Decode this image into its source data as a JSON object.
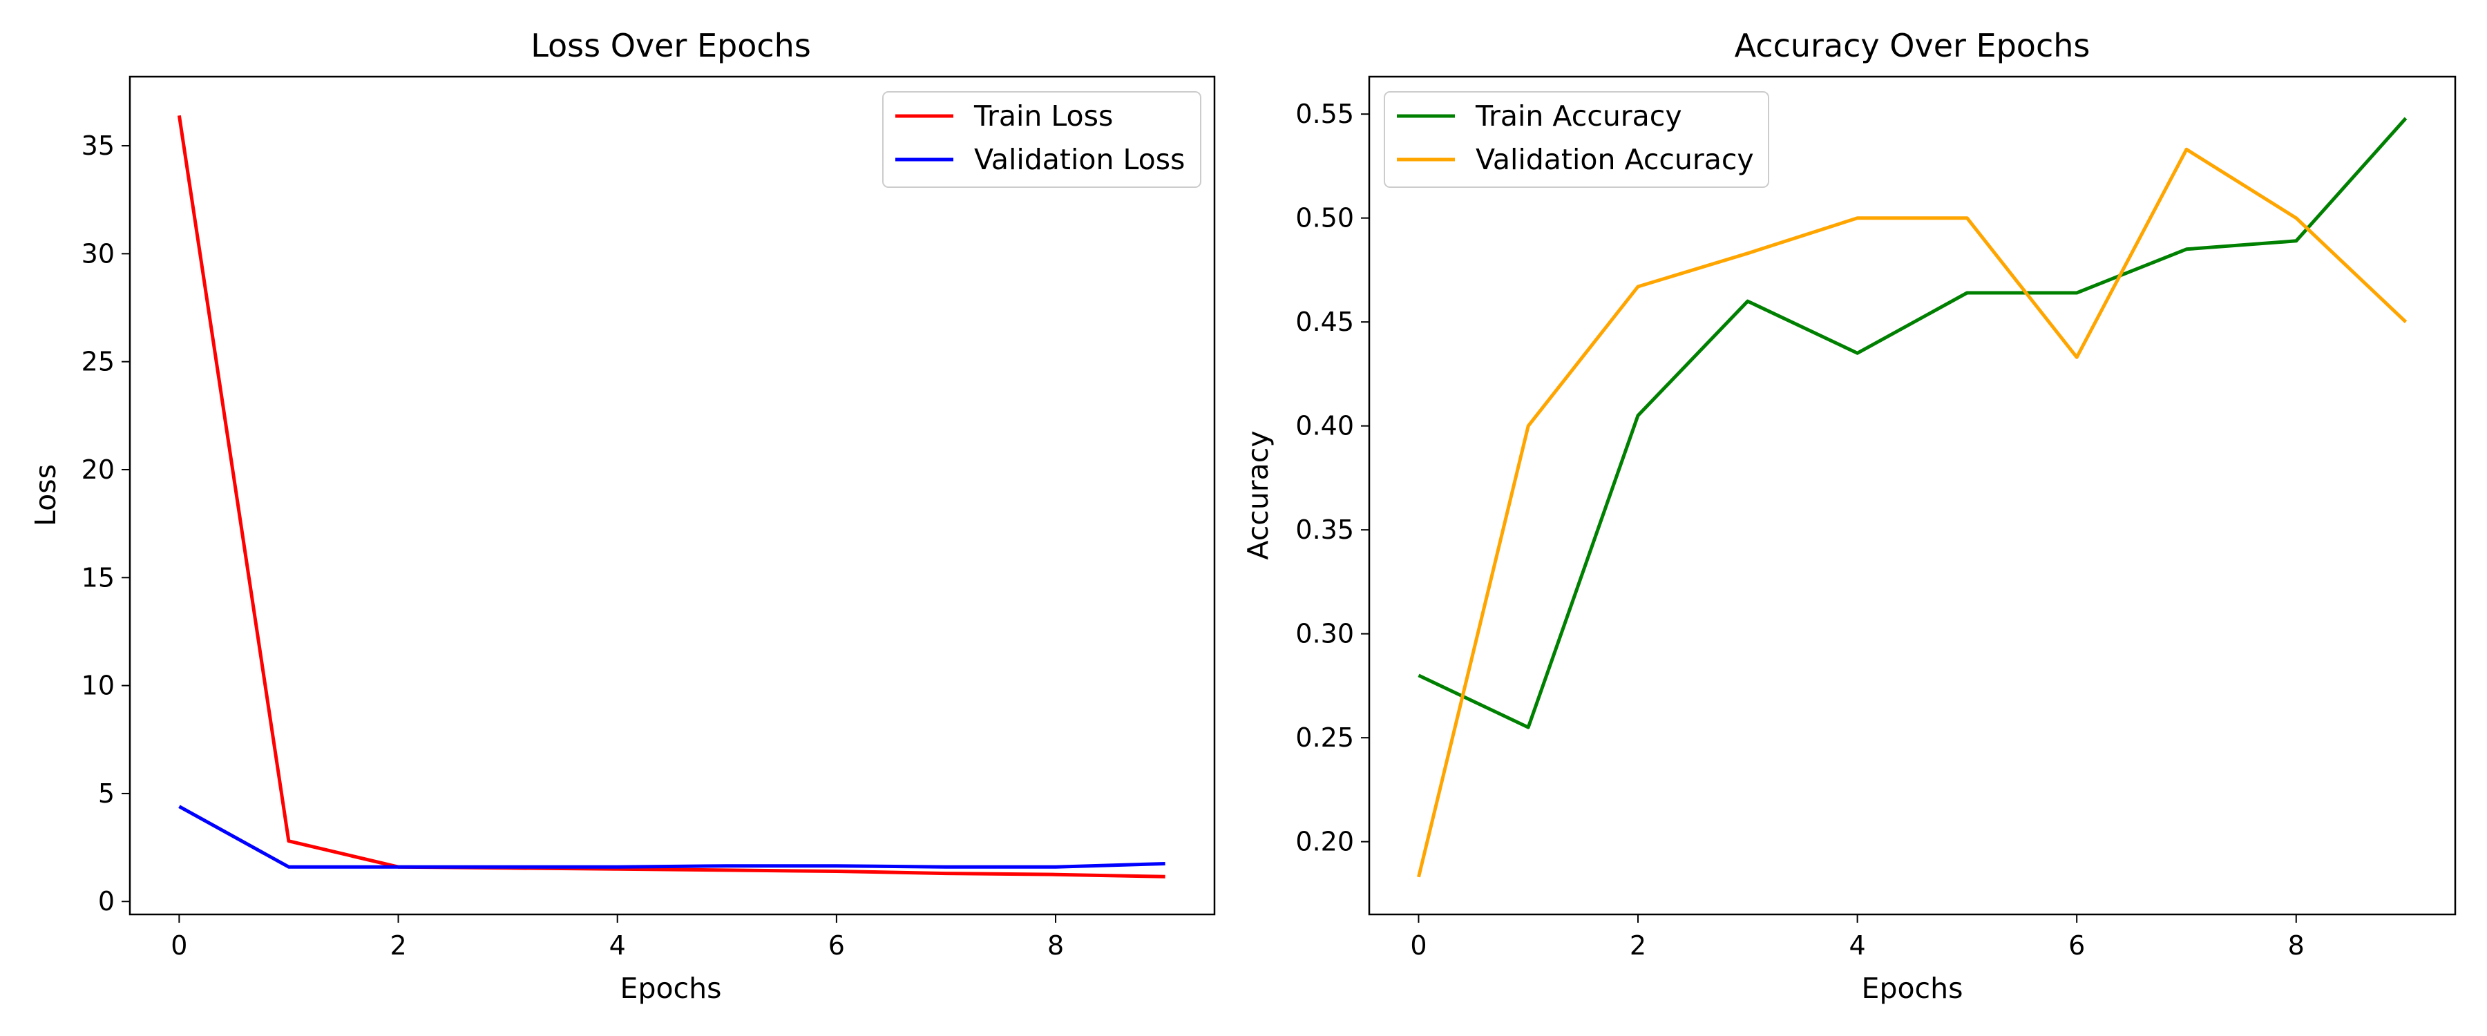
{
  "chart_data": [
    {
      "type": "line",
      "title": "Loss Over Epochs",
      "xlabel": "Epochs",
      "ylabel": "Loss",
      "xlim": [
        -0.45,
        9.45
      ],
      "ylim": [
        -0.6,
        38.2
      ],
      "xticks": [
        0,
        2,
        4,
        6,
        8
      ],
      "yticks": [
        0,
        5,
        10,
        15,
        20,
        25,
        30,
        35
      ],
      "grid": false,
      "legend": "top-right",
      "x": [
        0,
        1,
        2,
        3,
        4,
        5,
        6,
        7,
        8,
        9
      ],
      "series": [
        {
          "name": "Train Loss",
          "color": "#ff0000",
          "values": [
            36.4,
            2.8,
            1.6,
            1.55,
            1.5,
            1.45,
            1.4,
            1.3,
            1.25,
            1.15
          ]
        },
        {
          "name": "Validation Loss",
          "color": "#0000ff",
          "values": [
            4.4,
            1.6,
            1.6,
            1.6,
            1.6,
            1.65,
            1.65,
            1.6,
            1.6,
            1.75
          ]
        }
      ]
    },
    {
      "type": "line",
      "title": "Accuracy Over Epochs",
      "xlabel": "Epochs",
      "ylabel": "Accuracy",
      "xlim": [
        -0.45,
        9.45
      ],
      "ylim": [
        0.165,
        0.568
      ],
      "xticks": [
        0,
        2,
        4,
        6,
        8
      ],
      "yticks": [
        0.2,
        0.25,
        0.3,
        0.35,
        0.4,
        0.45,
        0.5,
        0.55
      ],
      "grid": false,
      "legend": "top-left",
      "x": [
        0,
        1,
        2,
        3,
        4,
        5,
        6,
        7,
        8,
        9
      ],
      "series": [
        {
          "name": "Train Accuracy",
          "color": "#008000",
          "values": [
            0.28,
            0.255,
            0.405,
            0.46,
            0.435,
            0.464,
            0.464,
            0.485,
            0.489,
            0.548
          ]
        },
        {
          "name": "Validation Accuracy",
          "color": "#ffa500",
          "values": [
            0.183,
            0.4,
            0.467,
            0.483,
            0.5,
            0.5,
            0.433,
            0.533,
            0.5,
            0.45
          ]
        }
      ]
    }
  ]
}
